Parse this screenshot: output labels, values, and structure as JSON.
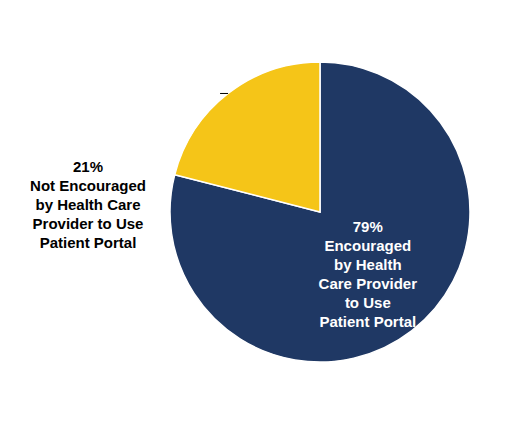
{
  "chart_data": {
    "type": "pie",
    "categories": [
      "Encouraged\nby Health\nCare Provider\nto Use\nPatient Portal",
      "Not Encouraged\nby Health Care\nProvider to Use\nPatient Portal"
    ],
    "values": [
      79,
      21
    ],
    "value_labels": [
      "79%",
      "21%"
    ],
    "data_labels": true,
    "colors": [
      "#1F3864",
      "#F5C518"
    ]
  }
}
